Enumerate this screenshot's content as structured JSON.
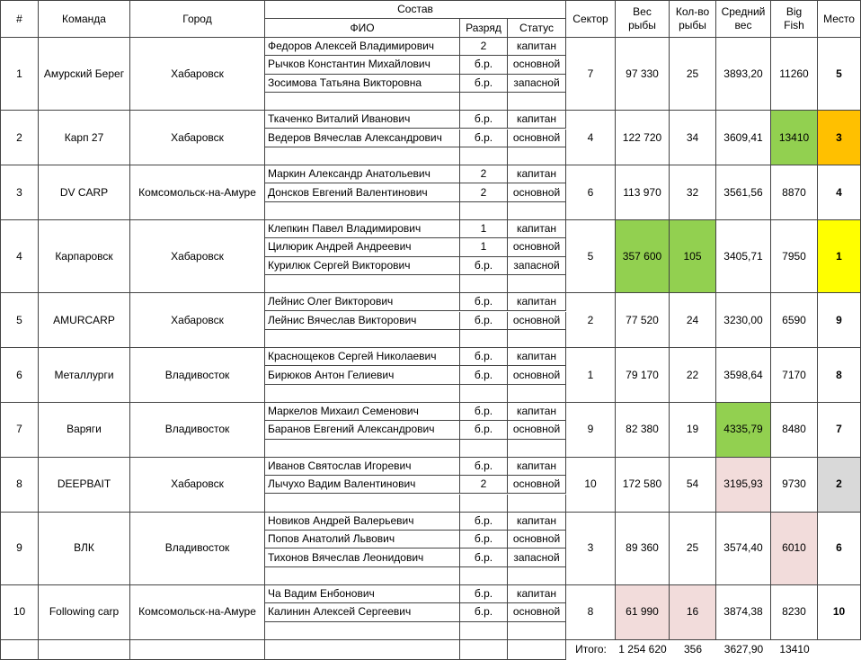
{
  "header": {
    "number": "#",
    "team": "Команда",
    "city": "Город",
    "roster": "Состав",
    "name": "ФИО",
    "rank": "Разряд",
    "status": "Статус",
    "sector": "Сектор",
    "weight": "Вес\nрыбы",
    "count": "Кол-во\nрыбы",
    "average": "Средний\nвес",
    "big_fish": "Big\nFish",
    "place": "Место"
  },
  "teams": [
    {
      "number": "1",
      "team": "Амурский Берег",
      "city": "Хабаровск",
      "members": [
        [
          "Федоров Алексей Владимирович",
          "2",
          "капитан"
        ],
        [
          "Рычков Константин Михайлович",
          "б.р.",
          "основной"
        ],
        [
          "Зосимова Татьяна Викторовна",
          "б.р.",
          "запасной"
        ]
      ],
      "sector": "7",
      "weight": "97 330",
      "count": "25",
      "average": "3893,20",
      "big_fish": "11260",
      "place": "5",
      "highlight": {}
    },
    {
      "number": "2",
      "team": "Карп 27",
      "city": "Хабаровск",
      "members": [
        [
          "Ткаченко Виталий Иванович",
          "б.р.",
          "капитан"
        ],
        [
          "Ведеров Вячеслав Александрович",
          "б.р.",
          "основной"
        ]
      ],
      "sector": "4",
      "weight": "122 720",
      "count": "34",
      "average": "3609,41",
      "big_fish": "13410",
      "place": "3",
      "highlight": {
        "big_fish": "#92d050",
        "place": "#ffc000"
      }
    },
    {
      "number": "3",
      "team": "DV CARP",
      "city": "Комсомольск-на-Амуре",
      "members": [
        [
          "Маркин Александр Анатольевич",
          "2",
          "капитан"
        ],
        [
          "Донсков Евгений Валентинович",
          "2",
          "основной"
        ]
      ],
      "sector": "6",
      "weight": "113 970",
      "count": "32",
      "average": "3561,56",
      "big_fish": "8870",
      "place": "4",
      "highlight": {}
    },
    {
      "number": "4",
      "team": "Карпаровск",
      "city": "Хабаровск",
      "members": [
        [
          "Клепкин Павел Владимирович",
          "1",
          "капитан"
        ],
        [
          "Цилюрик Андрей Андреевич",
          "1",
          "основной"
        ],
        [
          "Курилюк Сергей Викторович",
          "б.р.",
          "запасной"
        ]
      ],
      "sector": "5",
      "weight": "357 600",
      "count": "105",
      "average": "3405,71",
      "big_fish": "7950",
      "place": "1",
      "highlight": {
        "weight": "#92d050",
        "count": "#92d050",
        "place": "#ffff00"
      }
    },
    {
      "number": "5",
      "team": "AMURCARP",
      "city": "Хабаровск",
      "members": [
        [
          "Лейнис Олег Викторович",
          "б.р.",
          "капитан"
        ],
        [
          "Лейнис Вячеслав Викторович",
          "б.р.",
          "основной"
        ]
      ],
      "sector": "2",
      "weight": "77 520",
      "count": "24",
      "average": "3230,00",
      "big_fish": "6590",
      "place": "9",
      "highlight": {}
    },
    {
      "number": "6",
      "team": "Металлурги",
      "city": "Владивосток",
      "members": [
        [
          "Краснощеков Сергей Николаевич",
          "б.р.",
          "капитан"
        ],
        [
          "Бирюков Антон Гелиевич",
          "б.р.",
          "основной"
        ]
      ],
      "sector": "1",
      "weight": "79 170",
      "count": "22",
      "average": "3598,64",
      "big_fish": "7170",
      "place": "8",
      "highlight": {}
    },
    {
      "number": "7",
      "team": "Варяги",
      "city": "Владивосток",
      "members": [
        [
          "Маркелов Михаил Семенович",
          "б.р.",
          "капитан"
        ],
        [
          "Баранов Евгений Александрович",
          "б.р.",
          "основной"
        ]
      ],
      "sector": "9",
      "weight": "82 380",
      "count": "19",
      "average": "4335,79",
      "big_fish": "8480",
      "place": "7",
      "highlight": {
        "average": "#92d050"
      }
    },
    {
      "number": "8",
      "team": "DEEPBAIT",
      "city": "Хабаровск",
      "members": [
        [
          "Иванов Святослав Игоревич",
          "б.р.",
          "капитан"
        ],
        [
          "Лычухо Вадим Валентинович",
          "2",
          "основной"
        ]
      ],
      "sector": "10",
      "weight": "172 580",
      "count": "54",
      "average": "3195,93",
      "big_fish": "9730",
      "place": "2",
      "highlight": {
        "average": "#f2dcdb",
        "place": "#d9d9d9"
      }
    },
    {
      "number": "9",
      "team": "ВЛК",
      "city": "Владивосток",
      "members": [
        [
          "Новиков Андрей Валерьевич",
          "б.р.",
          "капитан"
        ],
        [
          "Попов Анатолий Львович",
          "б.р.",
          "основной"
        ],
        [
          "Тихонов Вячеслав Леонидович",
          "б.р.",
          "запасной"
        ]
      ],
      "sector": "3",
      "weight": "89 360",
      "count": "25",
      "average": "3574,40",
      "big_fish": "6010",
      "place": "6",
      "highlight": {
        "big_fish": "#f2dcdb"
      }
    },
    {
      "number": "10",
      "team": "Following carp",
      "city": "Комсомольск-на-Амуре",
      "members": [
        [
          "Ча Вадим Енбонович",
          "б.р.",
          "капитан"
        ],
        [
          "Калинин Алексей Сергеевич",
          "б.р.",
          "основной"
        ]
      ],
      "sector": "8",
      "weight": "61 990",
      "count": "16",
      "average": "3874,38",
      "big_fish": "8230",
      "place": "10",
      "highlight": {
        "weight": "#f2dcdb",
        "count": "#f2dcdb"
      }
    }
  ],
  "totals": {
    "label": "Итого:",
    "weight": "1 254 620",
    "count": "356",
    "average": "3627,90",
    "big_fish": "13410"
  }
}
